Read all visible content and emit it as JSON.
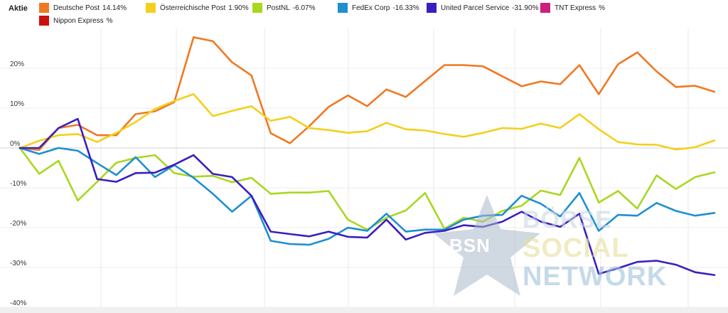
{
  "legend": {
    "title": "Aktie",
    "items": [
      {
        "name": "Deutsche Post",
        "value": "14.14%",
        "color": "#f07822"
      },
      {
        "name": "Österreichische Post",
        "value": "1.90%",
        "color": "#f5cf1d"
      },
      {
        "name": "PostNL",
        "value": "-6.07%",
        "color": "#a8d81f"
      },
      {
        "name": "FedEx Corp",
        "value": "-16.33%",
        "color": "#1f8fd0"
      },
      {
        "name": "United Parcel Service",
        "value": "-31.90%",
        "color": "#3a1fbf"
      },
      {
        "name": "TNT Express",
        "value": "%",
        "color": "#cc1f7f"
      },
      {
        "name": "Nippon Express",
        "value": "%",
        "color": "#cc1010"
      }
    ]
  },
  "watermark": {
    "logo_text": "BSN",
    "line1": "BÖRSE",
    "line2": "SOCIAL",
    "line3": "NETWORK"
  },
  "chart_data": {
    "type": "line",
    "ylim": [
      -40,
      30
    ],
    "y_ticks": [
      20,
      10,
      0,
      -10,
      -20,
      -30,
      -40
    ],
    "y_tick_labels": [
      "20%",
      "10%",
      "0%",
      "-10%",
      "-20%",
      "-30%",
      "-40%"
    ],
    "grid": true,
    "legend_position": "top",
    "series": [
      {
        "name": "Deutsche Post",
        "color": "#f07822",
        "values": [
          0,
          -0.5,
          5,
          5.8,
          3.2,
          3.2,
          8.5,
          9.2,
          11.5,
          27.8,
          26.8,
          21.5,
          18.2,
          3.7,
          1.2,
          5.5,
          10.3,
          13.2,
          10.5,
          14.7,
          12.8,
          16.8,
          20.8,
          20.8,
          20.5,
          18,
          15.5,
          16.7,
          16,
          20.8,
          13.5,
          21,
          24,
          19.2,
          15.3,
          15.6,
          14.1
        ]
      },
      {
        "name": "Österreichische Post",
        "color": "#f5cf1d",
        "values": [
          0,
          1.8,
          3.2,
          3.5,
          1.5,
          3.8,
          6.5,
          9.8,
          11.8,
          13.5,
          8,
          9.3,
          10.5,
          6.8,
          7.8,
          5,
          4.5,
          3.8,
          4.2,
          6.3,
          4.7,
          4.4,
          3.5,
          2.8,
          3.8,
          5,
          4.8,
          6.1,
          5,
          8.5,
          4.7,
          1.5,
          0.9,
          0.8,
          -0.4,
          0.2,
          1.9
        ]
      },
      {
        "name": "PostNL",
        "color": "#a8d81f",
        "values": [
          0,
          -6.5,
          -3.2,
          -13.2,
          -8.5,
          -3.7,
          -2.5,
          -1.8,
          -6.3,
          -7.2,
          -7,
          -8.6,
          -7.5,
          -11.5,
          -11.2,
          -11.2,
          -10.8,
          -18,
          -20.5,
          -17.5,
          -15.7,
          -11.3,
          -20.3,
          -17.5,
          -18.5,
          -15.8,
          -14.5,
          -10.7,
          -11.8,
          -2.5,
          -13.7,
          -10.8,
          -15.2,
          -6.9,
          -10.3,
          -7.3,
          -6.1
        ]
      },
      {
        "name": "FedEx Corp",
        "color": "#1f8fd0",
        "values": [
          0,
          -1.5,
          0,
          -0.7,
          -3.8,
          -6.8,
          -2.3,
          -7.3,
          -4.3,
          -7.5,
          -11.5,
          -16,
          -12,
          -23.3,
          -24.1,
          -24.3,
          -22.8,
          -20,
          -20.8,
          -16.5,
          -21,
          -20.5,
          -20.5,
          -18,
          -17,
          -16.8,
          -12,
          -14,
          -17.2,
          -11.3,
          -20.8,
          -16.8,
          -17,
          -13.8,
          -15.8,
          -17,
          -16.3
        ]
      },
      {
        "name": "United Parcel Service",
        "color": "#3a1fbf",
        "values": [
          0,
          0,
          5,
          7.3,
          -7.8,
          -8.5,
          -6.3,
          -6.2,
          -4.2,
          -1.8,
          -6.5,
          -7.3,
          -12,
          -21,
          -21.6,
          -22.2,
          -21,
          -22.3,
          -22.5,
          -18,
          -23,
          -21.3,
          -20.8,
          -19.4,
          -19.8,
          -18.5,
          -16,
          -18.5,
          -19.8,
          -16.5,
          -31.6,
          -30.2,
          -28.6,
          -28.3,
          -29.3,
          -31.2,
          -31.9
        ]
      }
    ]
  }
}
